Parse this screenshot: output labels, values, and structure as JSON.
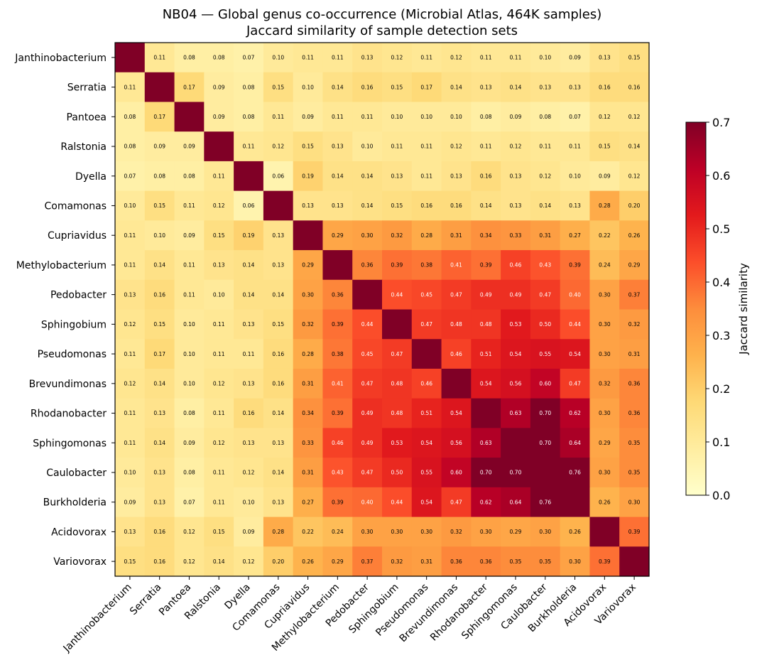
{
  "chart_data": {
    "type": "heatmap",
    "title": "NB04 — Global genus co-occurrence (Microbial Atlas, 464K samples)",
    "subtitle": "Jaccard similarity of sample detection sets",
    "colorbar_label": "Jaccard similarity",
    "colormap": "YlOrRd",
    "vmin": 0.0,
    "vmax": 0.7,
    "colorbar_ticks": [
      "0.0",
      "0.1",
      "0.2",
      "0.3",
      "0.4",
      "0.5",
      "0.6",
      "0.7"
    ],
    "labels": [
      "Janthinobacterium",
      "Serratia",
      "Pantoea",
      "Ralstonia",
      "Dyella",
      "Comamonas",
      "Cupriavidus",
      "Methylobacterium",
      "Pedobacter",
      "Sphingobium",
      "Pseudomonas",
      "Brevundimonas",
      "Rhodanobacter",
      "Sphingomonas",
      "Caulobacter",
      "Burkholderia",
      "Acidovorax",
      "Variovorax"
    ],
    "matrix": [
      [
        null,
        0.11,
        0.08,
        0.08,
        0.07,
        0.1,
        0.11,
        0.11,
        0.13,
        0.12,
        0.11,
        0.12,
        0.11,
        0.11,
        0.1,
        0.09,
        0.13,
        0.15
      ],
      [
        0.11,
        null,
        0.17,
        0.09,
        0.08,
        0.15,
        0.1,
        0.14,
        0.16,
        0.15,
        0.17,
        0.14,
        0.13,
        0.14,
        0.13,
        0.13,
        0.16,
        0.16
      ],
      [
        0.08,
        0.17,
        null,
        0.09,
        0.08,
        0.11,
        0.09,
        0.11,
        0.11,
        0.1,
        0.1,
        0.1,
        0.08,
        0.09,
        0.08,
        0.07,
        0.12,
        0.12
      ],
      [
        0.08,
        0.09,
        0.09,
        null,
        0.11,
        0.12,
        0.15,
        0.13,
        0.1,
        0.11,
        0.11,
        0.12,
        0.11,
        0.12,
        0.11,
        0.11,
        0.15,
        0.14
      ],
      [
        0.07,
        0.08,
        0.08,
        0.11,
        null,
        0.06,
        0.19,
        0.14,
        0.14,
        0.13,
        0.11,
        0.13,
        0.16,
        0.13,
        0.12,
        0.1,
        0.09,
        0.12
      ],
      [
        0.1,
        0.15,
        0.11,
        0.12,
        0.06,
        null,
        0.13,
        0.13,
        0.14,
        0.15,
        0.16,
        0.16,
        0.14,
        0.13,
        0.14,
        0.13,
        0.28,
        0.2
      ],
      [
        0.11,
        0.1,
        0.09,
        0.15,
        0.19,
        0.13,
        null,
        0.29,
        0.3,
        0.32,
        0.28,
        0.31,
        0.34,
        0.33,
        0.31,
        0.27,
        0.22,
        0.26
      ],
      [
        0.11,
        0.14,
        0.11,
        0.13,
        0.14,
        0.13,
        0.29,
        null,
        0.36,
        0.39,
        0.38,
        0.41,
        0.39,
        0.46,
        0.43,
        0.39,
        0.24,
        0.29
      ],
      [
        0.13,
        0.16,
        0.11,
        0.1,
        0.14,
        0.14,
        0.3,
        0.36,
        null,
        0.44,
        0.45,
        0.47,
        0.49,
        0.49,
        0.47,
        0.4,
        0.3,
        0.37
      ],
      [
        0.12,
        0.15,
        0.1,
        0.11,
        0.13,
        0.15,
        0.32,
        0.39,
        0.44,
        null,
        0.47,
        0.48,
        0.48,
        0.53,
        0.5,
        0.44,
        0.3,
        0.32
      ],
      [
        0.11,
        0.17,
        0.1,
        0.11,
        0.11,
        0.16,
        0.28,
        0.38,
        0.45,
        0.47,
        null,
        0.46,
        0.51,
        0.54,
        0.55,
        0.54,
        0.3,
        0.31
      ],
      [
        0.12,
        0.14,
        0.1,
        0.12,
        0.13,
        0.16,
        0.31,
        0.41,
        0.47,
        0.48,
        0.46,
        null,
        0.54,
        0.56,
        0.6,
        0.47,
        0.32,
        0.36
      ],
      [
        0.11,
        0.13,
        0.08,
        0.11,
        0.16,
        0.14,
        0.34,
        0.39,
        0.49,
        0.48,
        0.51,
        0.54,
        null,
        0.63,
        0.7,
        0.62,
        0.3,
        0.36
      ],
      [
        0.11,
        0.14,
        0.09,
        0.12,
        0.13,
        0.13,
        0.33,
        0.46,
        0.49,
        0.53,
        0.54,
        0.56,
        0.63,
        null,
        0.7,
        0.64,
        0.29,
        0.35
      ],
      [
        0.1,
        0.13,
        0.08,
        0.11,
        0.12,
        0.14,
        0.31,
        0.43,
        0.47,
        0.5,
        0.55,
        0.6,
        0.7,
        0.7,
        null,
        0.76,
        0.3,
        0.35
      ],
      [
        0.09,
        0.13,
        0.07,
        0.11,
        0.1,
        0.13,
        0.27,
        0.39,
        0.4,
        0.44,
        0.54,
        0.47,
        0.62,
        0.64,
        0.76,
        null,
        0.26,
        0.3
      ],
      [
        0.13,
        0.16,
        0.12,
        0.15,
        0.09,
        0.28,
        0.22,
        0.24,
        0.3,
        0.3,
        0.3,
        0.32,
        0.3,
        0.29,
        0.3,
        0.26,
        null,
        0.39
      ],
      [
        0.15,
        0.16,
        0.12,
        0.14,
        0.12,
        0.2,
        0.26,
        0.29,
        0.37,
        0.32,
        0.31,
        0.36,
        0.36,
        0.35,
        0.35,
        0.3,
        0.39,
        null
      ]
    ],
    "diagonal": "saturated (not labeled)"
  }
}
